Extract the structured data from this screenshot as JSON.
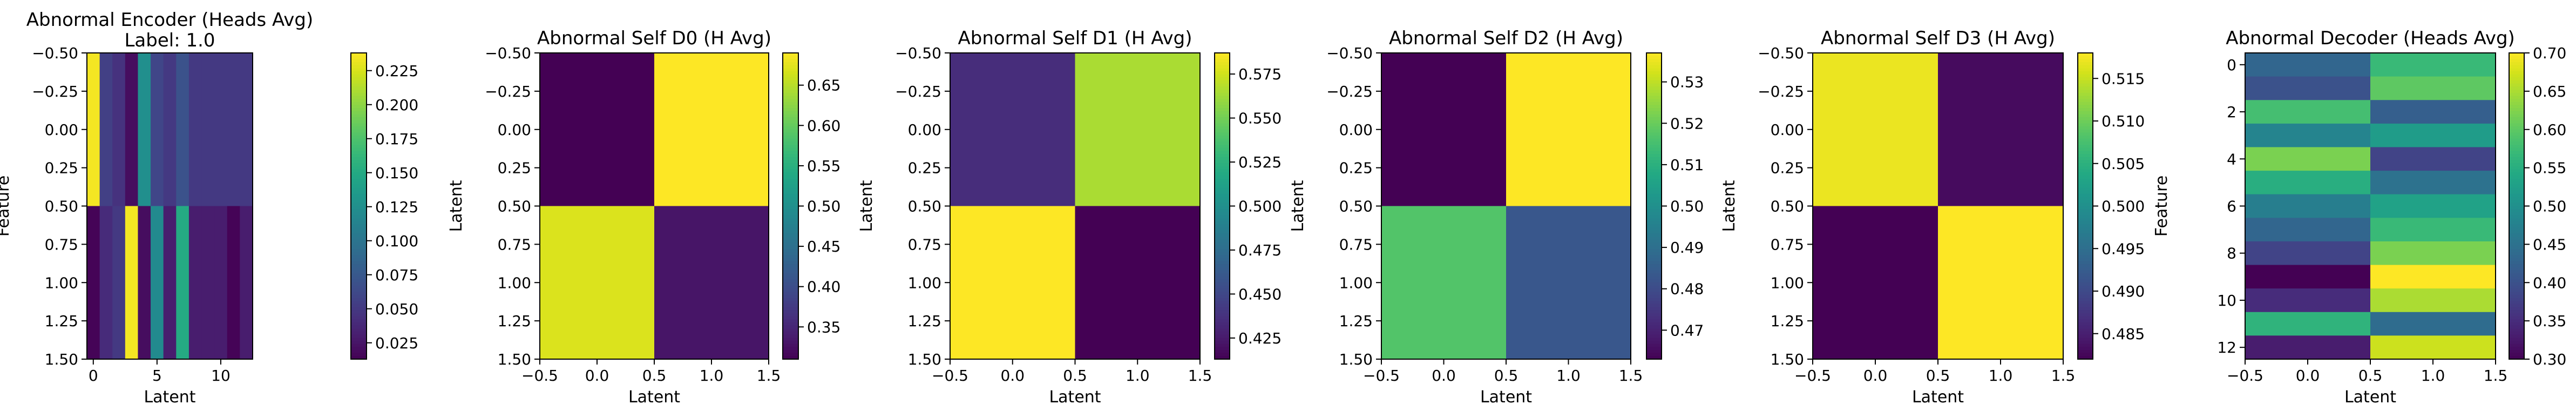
{
  "chart_data": [
    {
      "type": "heatmap",
      "title": "Abnormal Encoder (Heads Avg)",
      "subtitle": "Label: 1.0",
      "xlabel": "Latent",
      "ylabel": "Feature",
      "xlim": [
        -0.5,
        12.5
      ],
      "ylim": [
        1.5,
        -0.5
      ],
      "xticks": [
        0,
        5,
        10
      ],
      "xtick_labels": [
        "0",
        "5",
        "10"
      ],
      "yticks": [
        -0.5,
        -0.25,
        0.0,
        0.25,
        0.5,
        0.75,
        1.0,
        1.25,
        1.5
      ],
      "ytick_labels": [
        "−0.50",
        "−0.25",
        "0.00",
        "0.25",
        "0.50",
        "0.75",
        "1.00",
        "1.25",
        "1.50"
      ],
      "colorbar": {
        "min": 0.013,
        "max": 0.238,
        "ticks": [
          0.025,
          0.05,
          0.075,
          0.1,
          0.125,
          0.15,
          0.175,
          0.2,
          0.225
        ],
        "tick_labels": [
          "0.025",
          "0.050",
          "0.075",
          "0.100",
          "0.125",
          "0.150",
          "0.175",
          "0.200",
          "0.225"
        ]
      },
      "rows": 2,
      "cols": 13,
      "values": [
        [
          0.235,
          0.055,
          0.045,
          0.02,
          0.125,
          0.06,
          0.05,
          0.07,
          0.05,
          0.05,
          0.05,
          0.05,
          0.05
        ],
        [
          0.015,
          0.04,
          0.05,
          0.235,
          0.02,
          0.12,
          0.03,
          0.15,
          0.03,
          0.03,
          0.03,
          0.015,
          0.03
        ]
      ]
    },
    {
      "type": "heatmap",
      "title": "Abnormal Self D0 (H Avg)",
      "subtitle": "",
      "xlabel": "Latent",
      "ylabel": "Latent",
      "xlim": [
        -0.5,
        1.5
      ],
      "ylim": [
        1.5,
        -0.5
      ],
      "xticks": [
        -0.5,
        0.0,
        0.5,
        1.0,
        1.5
      ],
      "xtick_labels": [
        "−0.5",
        "0.0",
        "0.5",
        "1.0",
        "1.5"
      ],
      "yticks": [
        -0.5,
        -0.25,
        0.0,
        0.25,
        0.5,
        0.75,
        1.0,
        1.25,
        1.5
      ],
      "ytick_labels": [
        "−0.50",
        "−0.25",
        "0.00",
        "0.25",
        "0.50",
        "0.75",
        "1.00",
        "1.25",
        "1.50"
      ],
      "colorbar": {
        "min": 0.31,
        "max": 0.69,
        "ticks": [
          0.35,
          0.4,
          0.45,
          0.5,
          0.55,
          0.6,
          0.65
        ],
        "tick_labels": [
          "0.35",
          "0.40",
          "0.45",
          "0.50",
          "0.55",
          "0.60",
          "0.65"
        ]
      },
      "rows": 2,
      "cols": 2,
      "values": [
        [
          0.31,
          0.69
        ],
        [
          0.67,
          0.33
        ]
      ]
    },
    {
      "type": "heatmap",
      "title": "Abnormal Self D1 (H Avg)",
      "subtitle": "",
      "xlabel": "Latent",
      "ylabel": "Latent",
      "xlim": [
        -0.5,
        1.5
      ],
      "ylim": [
        1.5,
        -0.5
      ],
      "xticks": [
        -0.5,
        0.0,
        0.5,
        1.0,
        1.5
      ],
      "xtick_labels": [
        "−0.5",
        "0.0",
        "0.5",
        "1.0",
        "1.5"
      ],
      "yticks": [
        -0.5,
        -0.25,
        0.0,
        0.25,
        0.5,
        0.75,
        1.0,
        1.25,
        1.5
      ],
      "ytick_labels": [
        "−0.50",
        "−0.25",
        "0.00",
        "0.25",
        "0.50",
        "0.75",
        "1.00",
        "1.25",
        "1.50"
      ],
      "colorbar": {
        "min": 0.413,
        "max": 0.587,
        "ticks": [
          0.425,
          0.45,
          0.475,
          0.5,
          0.525,
          0.55,
          0.575
        ],
        "tick_labels": [
          "0.425",
          "0.450",
          "0.475",
          "0.500",
          "0.525",
          "0.550",
          "0.575"
        ]
      },
      "rows": 2,
      "cols": 2,
      "values": [
        [
          0.435,
          0.565
        ],
        [
          0.587,
          0.413
        ]
      ]
    },
    {
      "type": "heatmap",
      "title": "Abnormal Self D2 (H Avg)",
      "subtitle": "",
      "xlabel": "Latent",
      "ylabel": "Latent",
      "xlim": [
        -0.5,
        1.5
      ],
      "ylim": [
        1.5,
        -0.5
      ],
      "xticks": [
        -0.5,
        0.0,
        0.5,
        1.0,
        1.5
      ],
      "xtick_labels": [
        "−0.5",
        "0.0",
        "0.5",
        "1.0",
        "1.5"
      ],
      "yticks": [
        -0.5,
        -0.25,
        0.0,
        0.25,
        0.5,
        0.75,
        1.0,
        1.25,
        1.5
      ],
      "ytick_labels": [
        "−0.50",
        "−0.25",
        "0.00",
        "0.25",
        "0.50",
        "0.75",
        "1.00",
        "1.25",
        "1.50"
      ],
      "colorbar": {
        "min": 0.463,
        "max": 0.537,
        "ticks": [
          0.47,
          0.48,
          0.49,
          0.5,
          0.51,
          0.52,
          0.53
        ],
        "tick_labels": [
          "0.47",
          "0.48",
          "0.49",
          "0.50",
          "0.51",
          "0.52",
          "0.53"
        ]
      },
      "rows": 2,
      "cols": 2,
      "values": [
        [
          0.463,
          0.537
        ],
        [
          0.517,
          0.483
        ]
      ]
    },
    {
      "type": "heatmap",
      "title": "Abnormal Self D3 (H Avg)",
      "subtitle": "",
      "xlabel": "Latent",
      "ylabel": "Latent",
      "xlim": [
        -0.5,
        1.5
      ],
      "ylim": [
        1.5,
        -0.5
      ],
      "xticks": [
        -0.5,
        0.0,
        0.5,
        1.0,
        1.5
      ],
      "xtick_labels": [
        "−0.5",
        "0.0",
        "0.5",
        "1.0",
        "1.5"
      ],
      "yticks": [
        -0.5,
        -0.25,
        0.0,
        0.25,
        0.5,
        0.75,
        1.0,
        1.25,
        1.5
      ],
      "ytick_labels": [
        "−0.50",
        "−0.25",
        "0.00",
        "0.25",
        "0.50",
        "0.75",
        "1.00",
        "1.25",
        "1.50"
      ],
      "colorbar": {
        "min": 0.482,
        "max": 0.518,
        "ticks": [
          0.485,
          0.49,
          0.495,
          0.5,
          0.505,
          0.51,
          0.515
        ],
        "tick_labels": [
          "0.485",
          "0.490",
          "0.495",
          "0.500",
          "0.505",
          "0.510",
          "0.515"
        ]
      },
      "rows": 2,
      "cols": 2,
      "values": [
        [
          0.517,
          0.483
        ],
        [
          0.482,
          0.518
        ]
      ]
    },
    {
      "type": "heatmap",
      "title": "Abnormal Decoder (Heads Avg)",
      "subtitle": "",
      "xlabel": "Latent",
      "ylabel": "Feature",
      "xlim": [
        -0.5,
        1.5
      ],
      "ylim": [
        12.5,
        -0.5
      ],
      "xticks": [
        -0.5,
        0.0,
        0.5,
        1.0,
        1.5
      ],
      "xtick_labels": [
        "−0.5",
        "0.0",
        "0.5",
        "1.0",
        "1.5"
      ],
      "yticks": [
        0,
        2,
        4,
        6,
        8,
        10,
        12
      ],
      "ytick_labels": [
        "0",
        "2",
        "4",
        "6",
        "8",
        "10",
        "12"
      ],
      "colorbar": {
        "min": 0.3,
        "max": 0.7,
        "ticks": [
          0.3,
          0.35,
          0.4,
          0.45,
          0.5,
          0.55,
          0.6,
          0.65,
          0.7
        ],
        "tick_labels": [
          "0.30",
          "0.35",
          "0.40",
          "0.45",
          "0.50",
          "0.55",
          "0.60",
          "0.65",
          "0.70"
        ]
      },
      "rows": 13,
      "cols": 2,
      "values": [
        [
          0.43,
          0.57
        ],
        [
          0.4,
          0.6
        ],
        [
          0.58,
          0.42
        ],
        [
          0.48,
          0.52
        ],
        [
          0.62,
          0.38
        ],
        [
          0.55,
          0.45
        ],
        [
          0.47,
          0.53
        ],
        [
          0.43,
          0.57
        ],
        [
          0.38,
          0.62
        ],
        [
          0.3,
          0.7
        ],
        [
          0.35,
          0.65
        ],
        [
          0.56,
          0.44
        ],
        [
          0.33,
          0.67
        ]
      ]
    }
  ]
}
